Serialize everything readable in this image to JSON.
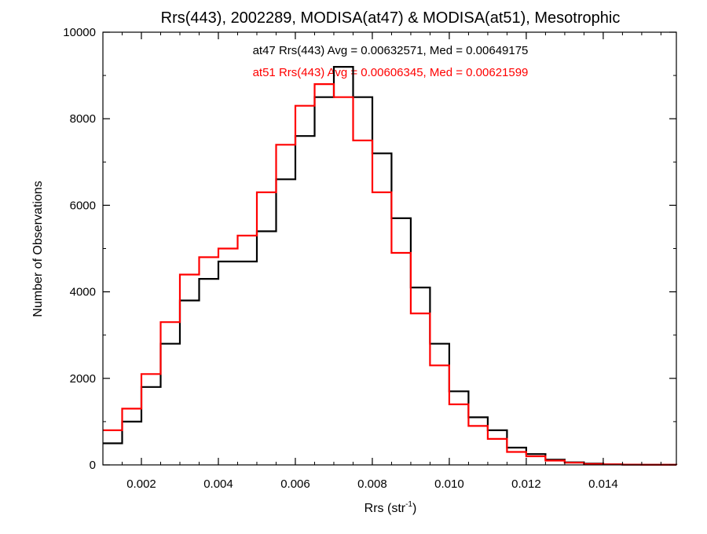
{
  "chart_data": {
    "type": "line",
    "title": "Rrs(443), 2002289, MODISA(at47) & MODISA(at51), Mesotrophic",
    "xlabel": "Rrs (str",
    "xlabel_sup": "-1",
    "xlabel_close": ")",
    "ylabel": "Number of Observations",
    "xlim": [
      0.001,
      0.0159
    ],
    "ylim": [
      0,
      10000
    ],
    "x_ticks": [
      0.002,
      0.004,
      0.006,
      0.008,
      0.01,
      0.012,
      0.014
    ],
    "x_tick_labels": [
      "0.002",
      "0.004",
      "0.006",
      "0.008",
      "0.010",
      "0.012",
      "0.014"
    ],
    "y_ticks": [
      0,
      2000,
      4000,
      6000,
      8000,
      10000
    ],
    "y_tick_labels": [
      "0",
      "2000",
      "4000",
      "6000",
      "8000",
      "10000"
    ],
    "grid": false,
    "step": true,
    "annotations": [
      {
        "text": "at47 Rrs(443) Avg = 0.00632571, Med = 0.00649175",
        "color": "#000000"
      },
      {
        "text": "at51 Rrs(443) Avg = 0.00606345, Med = 0.00621599",
        "color": "#ff0000"
      }
    ],
    "series": [
      {
        "color": "#000000",
        "x": [
          0.001,
          0.0015,
          0.002,
          0.0025,
          0.003,
          0.0035,
          0.004,
          0.0045,
          0.005,
          0.0055,
          0.006,
          0.0065,
          0.007,
          0.0075,
          0.008,
          0.0085,
          0.009,
          0.0095,
          0.01,
          0.0105,
          0.011,
          0.0115,
          0.012,
          0.0125,
          0.013,
          0.0135,
          0.014,
          0.0145,
          0.015,
          0.0159
        ],
        "y": [
          500,
          1000,
          1800,
          2800,
          3800,
          4300,
          4700,
          4700,
          5400,
          6600,
          7600,
          8500,
          9200,
          8500,
          7200,
          5700,
          4100,
          2800,
          1700,
          1100,
          800,
          400,
          250,
          120,
          60,
          30,
          10,
          5,
          2,
          0
        ]
      },
      {
        "color": "#ff0000",
        "x": [
          0.001,
          0.0015,
          0.002,
          0.0025,
          0.003,
          0.0035,
          0.004,
          0.0045,
          0.005,
          0.0055,
          0.006,
          0.0065,
          0.007,
          0.0075,
          0.008,
          0.0085,
          0.009,
          0.0095,
          0.01,
          0.0105,
          0.011,
          0.0115,
          0.012,
          0.0125,
          0.013,
          0.0135,
          0.014,
          0.0145,
          0.015,
          0.0159
        ],
        "y": [
          800,
          1300,
          2100,
          3300,
          4400,
          4800,
          5000,
          5300,
          6300,
          7400,
          8300,
          8800,
          8500,
          7500,
          6300,
          4900,
          3500,
          2300,
          1400,
          900,
          600,
          300,
          200,
          100,
          50,
          20,
          10,
          5,
          2,
          0
        ]
      }
    ]
  }
}
